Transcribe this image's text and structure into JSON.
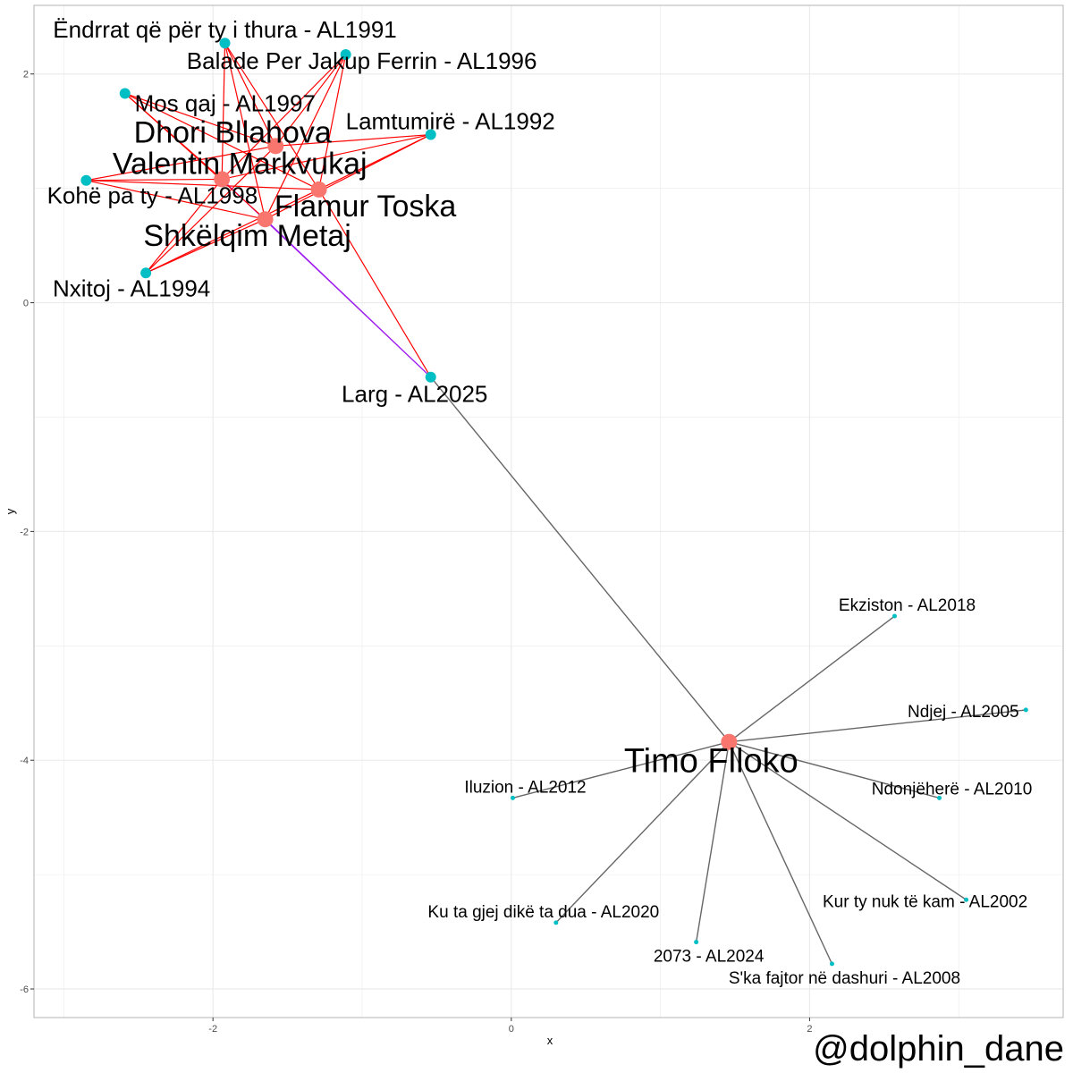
{
  "chart_data": {
    "type": "scatter",
    "subtype": "network-graph",
    "title": "",
    "xlabel": "x",
    "ylabel": "y",
    "xlim": [
      -3.2,
      3.7
    ],
    "ylim": [
      -6.25,
      2.6
    ],
    "xticks": [
      -2,
      0,
      2
    ],
    "yticks": [
      -6,
      -4,
      -2,
      0,
      2
    ],
    "tick_labels_x": [
      "-2",
      "0",
      "2"
    ],
    "tick_labels_y": [
      "-6",
      "-4",
      "-2",
      "0",
      "2"
    ],
    "grid": true,
    "legend": "none",
    "colors": {
      "artist": "#f8766d",
      "song": "#00bfc4",
      "edge_red": "#ff0000",
      "edge_gray": "#666666",
      "edge_purple": "#a020f0",
      "grid": "#ebebeb",
      "panel_border": "#b3b3b3"
    },
    "nodes": [
      {
        "id": "dhori",
        "label": "Dhori Bllahova",
        "type": "artist",
        "x": -1.58,
        "y": 1.37,
        "size": "large"
      },
      {
        "id": "valentin",
        "label": "Valentin Markvukaj",
        "type": "artist",
        "x": -1.94,
        "y": 1.08,
        "size": "large"
      },
      {
        "id": "flamur",
        "label": "Flamur Toska",
        "type": "artist",
        "x": -1.29,
        "y": 0.99,
        "size": "large"
      },
      {
        "id": "shkelqim",
        "label": "Shkëlqim Metaj",
        "type": "artist",
        "x": -1.65,
        "y": 0.73,
        "size": "large"
      },
      {
        "id": "timo",
        "label": "Timo Flloko",
        "type": "artist",
        "x": 1.46,
        "y": -3.84,
        "size": "large"
      },
      {
        "id": "s1991",
        "label": "Ëndrrat që për ty i thura - AL1991",
        "type": "song",
        "x": -1.92,
        "y": 2.27,
        "size": "medium"
      },
      {
        "id": "s1996",
        "label": "Balade Per Jakup Ferrin - AL1996",
        "type": "song",
        "x": -1.11,
        "y": 2.17,
        "size": "medium"
      },
      {
        "id": "s1997",
        "label": "Mos qaj - AL1997",
        "type": "song",
        "x": -2.59,
        "y": 1.83,
        "size": "medium"
      },
      {
        "id": "s1992",
        "label": "Lamtumirë - AL1992",
        "type": "song",
        "x": -0.54,
        "y": 1.47,
        "size": "medium"
      },
      {
        "id": "s1998",
        "label": "Kohë pa ty - AL1998",
        "type": "song",
        "x": -2.85,
        "y": 1.07,
        "size": "medium"
      },
      {
        "id": "s1994",
        "label": "Nxitoj - AL1994",
        "type": "song",
        "x": -2.45,
        "y": 0.26,
        "size": "medium"
      },
      {
        "id": "s2025",
        "label": "Larg - AL2025",
        "type": "song",
        "x": -0.54,
        "y": -0.65,
        "size": "medium"
      },
      {
        "id": "s2018",
        "label": "Ekziston - AL2018",
        "type": "song",
        "x": 2.57,
        "y": -2.74,
        "size": "small"
      },
      {
        "id": "s2005",
        "label": "Ndjej - AL2005",
        "type": "song",
        "x": 3.45,
        "y": -3.56,
        "size": "small"
      },
      {
        "id": "s2012",
        "label": "Iluzion - AL2012",
        "type": "song",
        "x": 0.01,
        "y": -4.33,
        "size": "small"
      },
      {
        "id": "s2010",
        "label": "Ndonjëherë - AL2010",
        "type": "song",
        "x": 2.87,
        "y": -4.33,
        "size": "small"
      },
      {
        "id": "s2002",
        "label": "Kur ty nuk të kam - AL2002",
        "type": "song",
        "x": 3.05,
        "y": -5.22,
        "size": "small"
      },
      {
        "id": "s2020",
        "label": "Ku ta gjej dikë ta dua - AL2020",
        "type": "song",
        "x": 0.3,
        "y": -5.42,
        "size": "small"
      },
      {
        "id": "s2024",
        "label": "2073 - AL2024",
        "type": "song",
        "x": 1.24,
        "y": -5.59,
        "size": "small"
      },
      {
        "id": "s2008",
        "label": "S'ka fajtor në dashuri - AL2008",
        "type": "song",
        "x": 2.15,
        "y": -5.78,
        "size": "small"
      }
    ],
    "edges": [
      {
        "from": "dhori",
        "to": "s1991",
        "color": "red"
      },
      {
        "from": "dhori",
        "to": "s1996",
        "color": "red"
      },
      {
        "from": "dhori",
        "to": "s1997",
        "color": "red"
      },
      {
        "from": "dhori",
        "to": "s1992",
        "color": "red"
      },
      {
        "from": "dhori",
        "to": "s1998",
        "color": "red"
      },
      {
        "from": "dhori",
        "to": "s1994",
        "color": "red"
      },
      {
        "from": "valentin",
        "to": "s1991",
        "color": "red"
      },
      {
        "from": "valentin",
        "to": "s1996",
        "color": "red"
      },
      {
        "from": "valentin",
        "to": "s1997",
        "color": "red"
      },
      {
        "from": "valentin",
        "to": "s1992",
        "color": "red"
      },
      {
        "from": "valentin",
        "to": "s1998",
        "color": "red"
      },
      {
        "from": "valentin",
        "to": "s1994",
        "color": "red"
      },
      {
        "from": "valentin",
        "to": "s2025",
        "color": "purple"
      },
      {
        "from": "flamur",
        "to": "s1991",
        "color": "red"
      },
      {
        "from": "flamur",
        "to": "s1996",
        "color": "red"
      },
      {
        "from": "flamur",
        "to": "s1997",
        "color": "red"
      },
      {
        "from": "flamur",
        "to": "s1992",
        "color": "red"
      },
      {
        "from": "flamur",
        "to": "s1998",
        "color": "red"
      },
      {
        "from": "flamur",
        "to": "s1994",
        "color": "red"
      },
      {
        "from": "flamur",
        "to": "s2025",
        "color": "red"
      },
      {
        "from": "shkelqim",
        "to": "s1991",
        "color": "red"
      },
      {
        "from": "shkelqim",
        "to": "s1996",
        "color": "red"
      },
      {
        "from": "shkelqim",
        "to": "s1997",
        "color": "red"
      },
      {
        "from": "shkelqim",
        "to": "s1992",
        "color": "red"
      },
      {
        "from": "shkelqim",
        "to": "s1998",
        "color": "red"
      },
      {
        "from": "shkelqim",
        "to": "s1994",
        "color": "red"
      },
      {
        "from": "shkelqim",
        "to": "s2025",
        "color": "purple"
      },
      {
        "from": "timo",
        "to": "s2025",
        "color": "gray"
      },
      {
        "from": "timo",
        "to": "s2018",
        "color": "gray"
      },
      {
        "from": "timo",
        "to": "s2005",
        "color": "gray"
      },
      {
        "from": "timo",
        "to": "s2012",
        "color": "gray"
      },
      {
        "from": "timo",
        "to": "s2010",
        "color": "gray"
      },
      {
        "from": "timo",
        "to": "s2002",
        "color": "gray"
      },
      {
        "from": "timo",
        "to": "s2020",
        "color": "gray"
      },
      {
        "from": "timo",
        "to": "s2024",
        "color": "gray"
      },
      {
        "from": "timo",
        "to": "s2008",
        "color": "gray"
      }
    ]
  },
  "watermark": "@dolphin_dane"
}
